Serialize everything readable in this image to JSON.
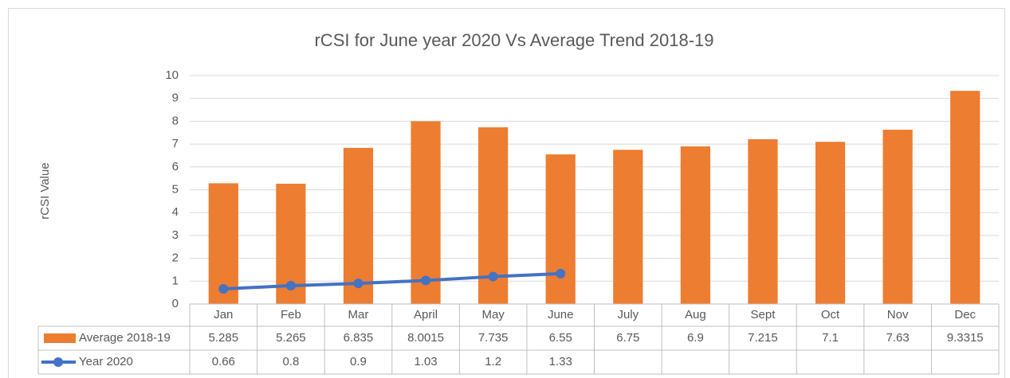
{
  "chart_data": {
    "type": "bar",
    "title": "rCSI for June year 2020 Vs  Average Trend 2018-19",
    "y_label": "rCSI Value",
    "categories": [
      "Jan",
      "Feb",
      "Mar",
      "April",
      "May",
      "June",
      "July",
      "Aug",
      "Sept",
      "Oct",
      "Nov",
      "Dec"
    ],
    "series": [
      {
        "name": "Average 2018-19",
        "type": "bar",
        "color": "#ed7d31",
        "values": [
          5.285,
          5.265,
          6.835,
          8.0015,
          7.735,
          6.55,
          6.75,
          6.9,
          7.215,
          7.1,
          7.63,
          9.3315
        ]
      },
      {
        "name": "Year 2020",
        "type": "line",
        "color": "#4472c4",
        "values": [
          0.66,
          0.8,
          0.9,
          1.03,
          1.2,
          1.33,
          null,
          null,
          null,
          null,
          null,
          null
        ]
      }
    ],
    "ylim": [
      0,
      10
    ],
    "yticks": [
      0,
      1,
      2,
      3,
      4,
      5,
      6,
      7,
      8,
      9,
      10
    ],
    "grid": true,
    "data_table": true
  }
}
